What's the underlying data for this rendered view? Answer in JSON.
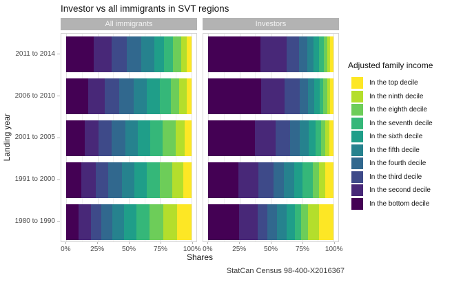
{
  "chart_data": {
    "type": "bar",
    "orientation": "horizontal",
    "stacked": true,
    "faceted": true,
    "title": "Investor vs all immigrants in SVT regions",
    "xlabel": "Shares",
    "ylabel": "Landing year",
    "caption": "StatCan Census 98-400-X2016367",
    "xlim": [
      0,
      100
    ],
    "x_ticks": {
      "labels": [
        "0%",
        "25%",
        "50%",
        "75%",
        "100%"
      ],
      "values": [
        0,
        25,
        50,
        75,
        100
      ],
      "minor": [
        12.5,
        37.5,
        62.5,
        87.5
      ]
    },
    "categories": [
      "2011 to 2014",
      "2006 to 2010",
      "2001 to 2005",
      "1991 to 2000",
      "1980 to 1990"
    ],
    "legend_title": "Adjusted family income",
    "legend_position": "right",
    "legend": [
      {
        "label": "In the top decile",
        "color": "#FDE725"
      },
      {
        "label": "In the ninth decile",
        "color": "#B4DE2C"
      },
      {
        "label": "In the eighth decile",
        "color": "#6DCD59"
      },
      {
        "label": "In the seventh decile",
        "color": "#35B779"
      },
      {
        "label": "In the sixth decile",
        "color": "#1F9E89"
      },
      {
        "label": "In the fifth decile",
        "color": "#26828E"
      },
      {
        "label": "In the fourth decile",
        "color": "#31688E"
      },
      {
        "label": "In the third decile",
        "color": "#3E4A89"
      },
      {
        "label": "In the second decile",
        "color": "#482878"
      },
      {
        "label": "In the bottom decile",
        "color": "#440154"
      }
    ],
    "values_order": "bottom decile to top decile, drawn left to right; values are percent shares",
    "facets": [
      {
        "label": "All immigrants",
        "rows": [
          {
            "category": "2011 to 2014",
            "values": [
              22.0,
              14.0,
              12.5,
              11.5,
              10.5,
              7.5,
              7.5,
              6.5,
              4.5,
              3.5
            ]
          },
          {
            "category": "2006 to 2010",
            "values": [
              17.5,
              13.0,
              12.0,
              11.3,
              10.7,
              10.2,
              9.0,
              6.8,
              5.8,
              3.7
            ]
          },
          {
            "category": "2001 to 2005",
            "values": [
              14.5,
              11.0,
              10.5,
              11.0,
              10.3,
              10.0,
              10.0,
              10.0,
              7.2,
              5.5
            ]
          },
          {
            "category": "1991 to 2000",
            "values": [
              12.0,
              11.4,
              10.3,
              10.9,
              10.0,
              10.0,
              10.0,
              10.3,
              8.7,
              6.4
            ]
          },
          {
            "category": "1980 to 1990",
            "values": [
              9.6,
              10.3,
              8.2,
              8.6,
              9.6,
              10.0,
              10.3,
              11.1,
              10.8,
              11.5
            ]
          }
        ]
      },
      {
        "label": "Investors",
        "rows": [
          {
            "category": "2011 to 2014",
            "values": [
              42.0,
              20.6,
              10.2,
              6.6,
              4.7,
              4.5,
              3.8,
              2.9,
              2.3,
              2.4
            ]
          },
          {
            "category": "2006 to 2010",
            "values": [
              42.4,
              18.8,
              12.2,
              6.6,
              5.0,
              3.9,
              3.2,
              3.0,
              2.4,
              2.5
            ]
          },
          {
            "category": "2001 to 2005",
            "values": [
              37.5,
              16.1,
              11.6,
              8.1,
              7.2,
              5.2,
              4.5,
              3.6,
              2.9,
              3.3
            ]
          },
          {
            "category": "1991 to 2000",
            "values": [
              24.0,
              16.0,
              12.0,
              8.5,
              8.5,
              6.5,
              8.0,
              5.0,
              5.0,
              6.5
            ]
          },
          {
            "category": "1980 to 1990",
            "values": [
              24.5,
              14.8,
              8.1,
              7.5,
              7.7,
              6.6,
              5.0,
              5.4,
              8.9,
              11.5
            ]
          }
        ]
      }
    ]
  }
}
